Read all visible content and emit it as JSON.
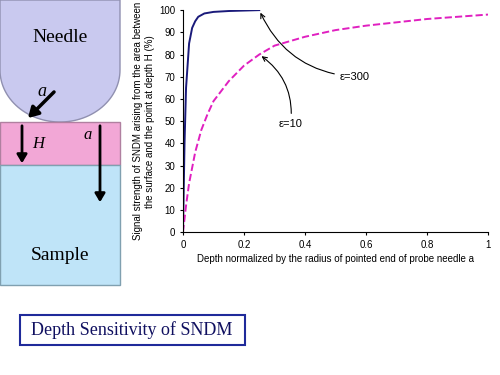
{
  "chart_data": {
    "type": "line",
    "x_label": "Depth normalized by the radius of pointed end of probe needle a",
    "y_label": "Signal strength of SNDM arising from the area between the surface and the point at depth H (%)",
    "xlim": [
      0,
      1
    ],
    "xticks": [
      0,
      0.2,
      0.4,
      0.6,
      0.8,
      1
    ],
    "ylim": [
      0,
      100
    ],
    "yticks": [
      0,
      10,
      20,
      30,
      40,
      50,
      60,
      70,
      80,
      90,
      100
    ],
    "grid": false,
    "series": [
      {
        "name": "ε=300",
        "color": "#1a1a7a",
        "line_style": "solid",
        "x": [
          0,
          0.005,
          0.01,
          0.02,
          0.03,
          0.04,
          0.05,
          0.07,
          0.1,
          0.15,
          0.2,
          0.25
        ],
        "values": [
          0,
          40,
          65,
          85,
          92,
          95,
          97,
          98.5,
          99.2,
          99.6,
          99.8,
          100
        ]
      },
      {
        "name": "ε=10",
        "color": "#e020c0",
        "line_style": "dashed",
        "x": [
          0,
          0.01,
          0.02,
          0.04,
          0.06,
          0.08,
          0.1,
          0.15,
          0.2,
          0.25,
          0.3,
          0.4,
          0.5,
          0.6,
          0.7,
          0.8,
          0.9,
          1.0
        ],
        "values": [
          0,
          12,
          22,
          36,
          46,
          53,
          59,
          68,
          75,
          80,
          84,
          88,
          91,
          93,
          94.5,
          96,
          97,
          98
        ]
      }
    ]
  },
  "diagram": {
    "needle": {
      "label": "Needle",
      "arrow_label": "a"
    },
    "layer": {
      "depth_label": "H",
      "arrow_label": "a"
    },
    "sample": {
      "label": "Sample"
    }
  },
  "caption": "Depth Sensitivity of SNDM"
}
